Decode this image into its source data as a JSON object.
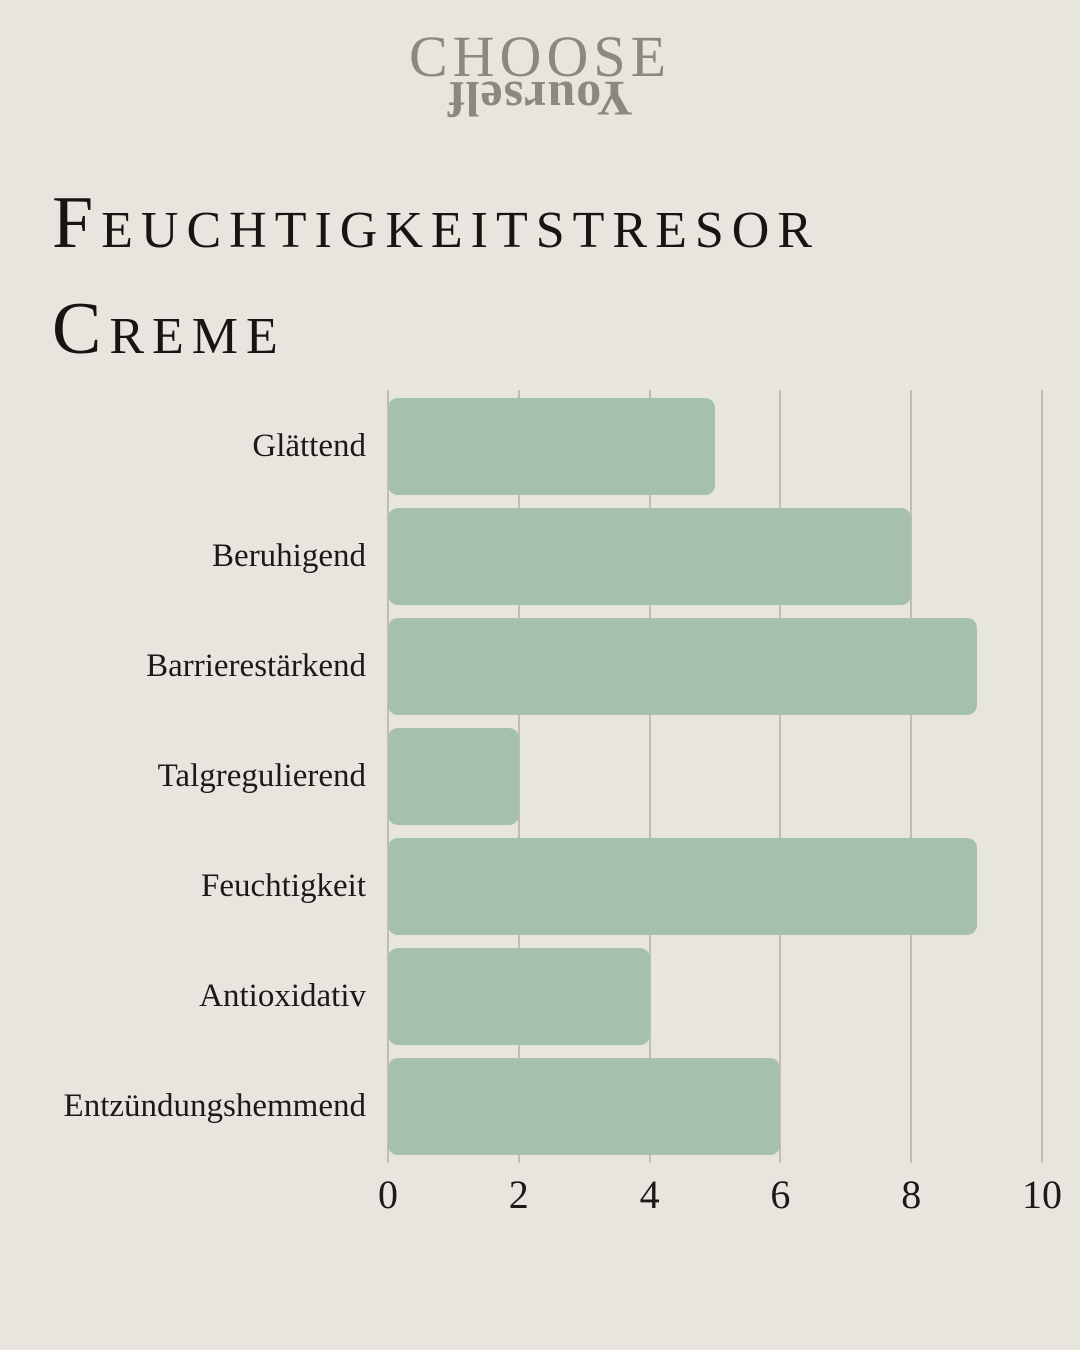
{
  "page": {
    "background_color": "#e8e5de",
    "text_color": "#161514"
  },
  "logo": {
    "line1": "CHOOSE",
    "line2": "Yourself",
    "color": "#8b8882",
    "line2_rotated_180": true
  },
  "title": {
    "text": "Feuchtigkeitstresor Creme"
  },
  "chart_data": {
    "type": "bar",
    "orientation": "horizontal",
    "categories": [
      "Glättend",
      "Beruhigend",
      "Barrierestärkend",
      "Talgregulierend",
      "Feuchtigkeit",
      "Antioxidativ",
      "Entzündungshemmend"
    ],
    "values": [
      5,
      8,
      9,
      2,
      9,
      4,
      6
    ],
    "xlim": [
      0,
      10
    ],
    "x_ticks": [
      0,
      2,
      4,
      6,
      8,
      10
    ],
    "grid": "vertical-gridlines-on",
    "legend": "none",
    "bar_color": "#a6c1ab",
    "gridline_color": "#bfbdb6",
    "title": "",
    "xlabel": "",
    "ylabel": ""
  }
}
